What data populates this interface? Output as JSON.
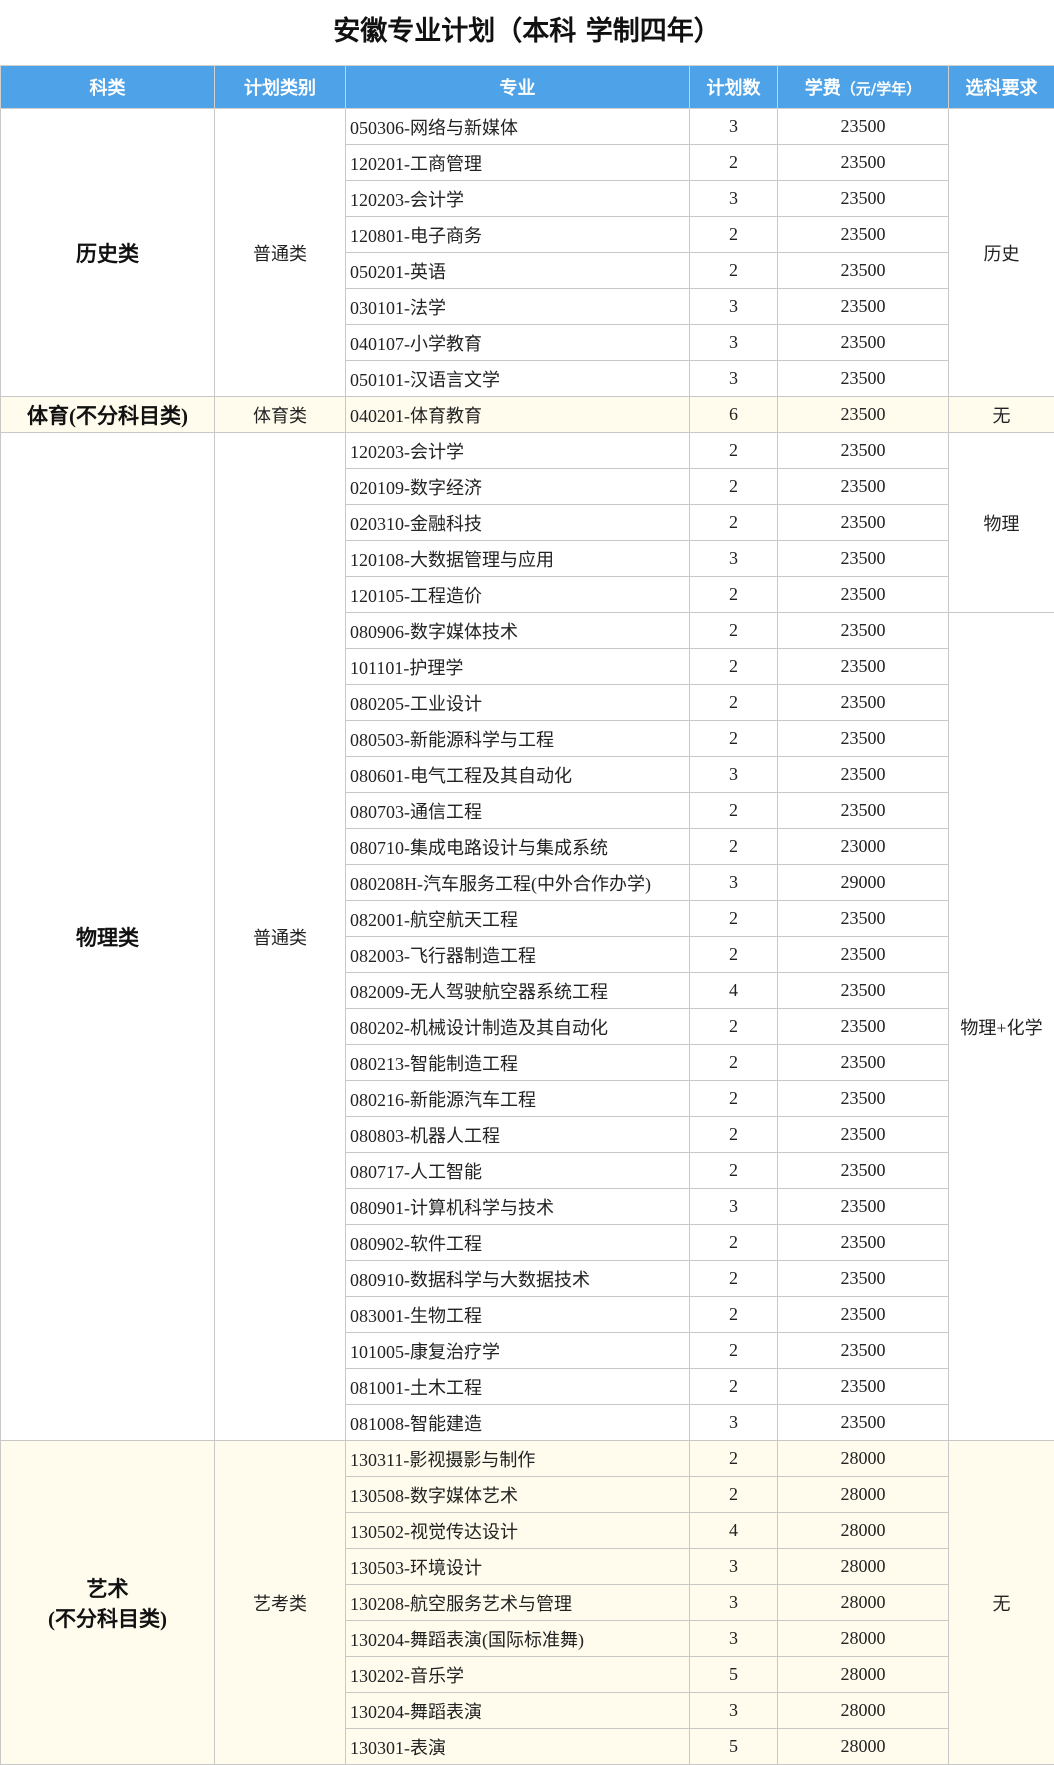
{
  "title": "安徽专业计划（本科 学制四年）",
  "headers": [
    "科类",
    "计划类别",
    "专业",
    "计划数",
    "学费",
    "（元/学年）",
    "选科要求"
  ],
  "colors": {
    "header_bg": "#4da2e8",
    "highlight_bg": "#fffcee"
  },
  "groups": [
    {
      "subject": "历史类",
      "highlight": false,
      "blocks": [
        {
          "plan_type": "普通类",
          "reqs": [
            {
              "req": "历史",
              "rows": [
                [
                  "050306-网络与新媒体",
                  "3",
                  "23500"
                ],
                [
                  "120201-工商管理",
                  "2",
                  "23500"
                ],
                [
                  "120203-会计学",
                  "3",
                  "23500"
                ],
                [
                  "120801-电子商务",
                  "2",
                  "23500"
                ],
                [
                  "050201-英语",
                  "2",
                  "23500"
                ],
                [
                  "030101-法学",
                  "3",
                  "23500"
                ],
                [
                  "040107-小学教育",
                  "3",
                  "23500"
                ],
                [
                  "050101-汉语言文学",
                  "3",
                  "23500"
                ]
              ]
            }
          ]
        }
      ]
    },
    {
      "subject": "体育(不分科目类)",
      "highlight": true,
      "blocks": [
        {
          "plan_type": "体育类",
          "reqs": [
            {
              "req": "无",
              "rows": [
                [
                  "040201-体育教育",
                  "6",
                  "23500"
                ]
              ]
            }
          ]
        }
      ]
    },
    {
      "subject": "物理类",
      "highlight": false,
      "blocks": [
        {
          "plan_type": "普通类",
          "reqs": [
            {
              "req": "物理",
              "rows": [
                [
                  "120203-会计学",
                  "2",
                  "23500"
                ],
                [
                  "020109-数字经济",
                  "2",
                  "23500"
                ],
                [
                  "020310-金融科技",
                  "2",
                  "23500"
                ],
                [
                  "120108-大数据管理与应用",
                  "3",
                  "23500"
                ],
                [
                  "120105-工程造价",
                  "2",
                  "23500"
                ]
              ]
            },
            {
              "req": "物理+化学",
              "rows": [
                [
                  "080906-数字媒体技术",
                  "2",
                  "23500"
                ],
                [
                  "101101-护理学",
                  "2",
                  "23500"
                ],
                [
                  "080205-工业设计",
                  "2",
                  "23500"
                ],
                [
                  "080503-新能源科学与工程",
                  "2",
                  "23500"
                ],
                [
                  "080601-电气工程及其自动化",
                  "3",
                  "23500"
                ],
                [
                  "080703-通信工程",
                  "2",
                  "23500"
                ],
                [
                  "080710-集成电路设计与集成系统",
                  "2",
                  "23000"
                ],
                [
                  "080208H-汽车服务工程(中外合作办学)",
                  "3",
                  "29000"
                ],
                [
                  "082001-航空航天工程",
                  "2",
                  "23500"
                ],
                [
                  "082003-飞行器制造工程",
                  "2",
                  "23500"
                ],
                [
                  "082009-无人驾驶航空器系统工程",
                  "4",
                  "23500"
                ],
                [
                  "080202-机械设计制造及其自动化",
                  "2",
                  "23500"
                ],
                [
                  "080213-智能制造工程",
                  "2",
                  "23500"
                ],
                [
                  "080216-新能源汽车工程",
                  "2",
                  "23500"
                ],
                [
                  "080803-机器人工程",
                  "2",
                  "23500"
                ],
                [
                  "080717-人工智能",
                  "2",
                  "23500"
                ],
                [
                  "080901-计算机科学与技术",
                  "3",
                  "23500"
                ],
                [
                  "080902-软件工程",
                  "2",
                  "23500"
                ],
                [
                  "080910-数据科学与大数据技术",
                  "2",
                  "23500"
                ],
                [
                  "083001-生物工程",
                  "2",
                  "23500"
                ],
                [
                  "101005-康复治疗学",
                  "2",
                  "23500"
                ],
                [
                  "081001-土木工程",
                  "2",
                  "23500"
                ],
                [
                  "081008-智能建造",
                  "3",
                  "23500"
                ]
              ]
            }
          ]
        }
      ]
    },
    {
      "subject": "艺术\n(不分科目类)",
      "highlight": true,
      "blocks": [
        {
          "plan_type": "艺考类",
          "reqs": [
            {
              "req": "无",
              "rows": [
                [
                  "130311-影视摄影与制作",
                  "2",
                  "28000"
                ],
                [
                  "130508-数字媒体艺术",
                  "2",
                  "28000"
                ],
                [
                  "130502-视觉传达设计",
                  "4",
                  "28000"
                ],
                [
                  "130503-环境设计",
                  "3",
                  "28000"
                ],
                [
                  "130208-航空服务艺术与管理",
                  "3",
                  "28000"
                ],
                [
                  "130204-舞蹈表演(国际标准舞)",
                  "3",
                  "28000"
                ],
                [
                  "130202-音乐学",
                  "5",
                  "28000"
                ],
                [
                  "130204-舞蹈表演",
                  "3",
                  "28000"
                ],
                [
                  "130301-表演",
                  "5",
                  "28000"
                ]
              ]
            }
          ]
        }
      ]
    }
  ]
}
